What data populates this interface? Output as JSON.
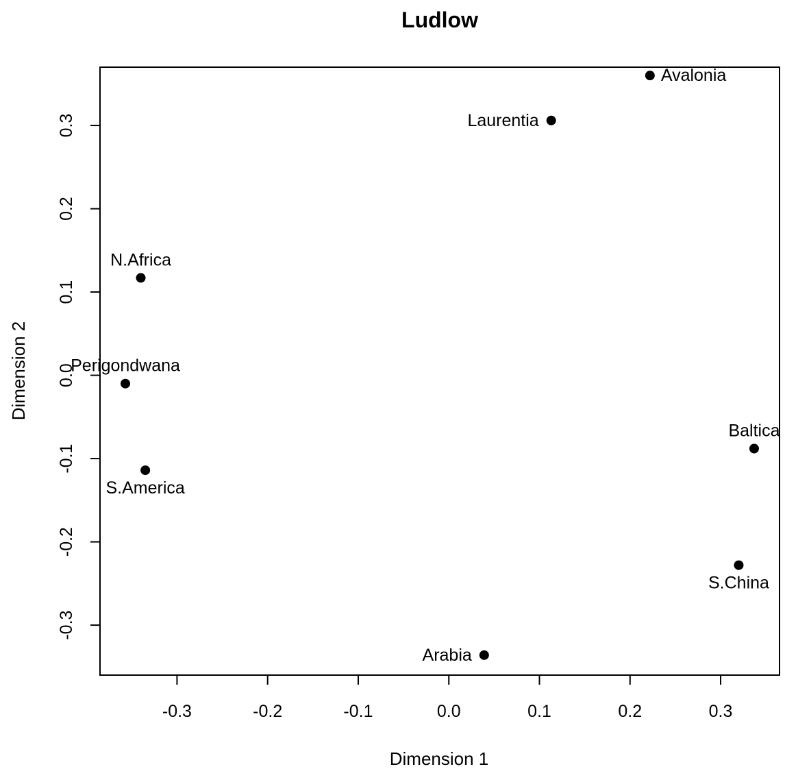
{
  "chart_data": {
    "type": "scatter",
    "title": "Ludlow",
    "xlabel": "Dimension 1",
    "ylabel": "Dimension 2",
    "xlim": [
      -0.385,
      0.365
    ],
    "ylim": [
      -0.36,
      0.37
    ],
    "grid": false,
    "legend": "none",
    "x_ticks": [
      -0.3,
      -0.2,
      -0.1,
      0.0,
      0.1,
      0.2,
      0.3
    ],
    "x_tick_labels": [
      "-0.3",
      "-0.2",
      "-0.1",
      "0.0",
      "0.1",
      "0.2",
      "0.3"
    ],
    "y_ticks": [
      -0.3,
      -0.2,
      -0.1,
      0.0,
      0.1,
      0.2,
      0.3
    ],
    "y_tick_labels": [
      "-0.3",
      "-0.2",
      "-0.1",
      "0.0",
      "0.1",
      "0.2",
      "0.3"
    ],
    "points": [
      {
        "label": "Avalonia",
        "x": 0.222,
        "y": 0.36,
        "label_pos": "right"
      },
      {
        "label": "Laurentia",
        "x": 0.113,
        "y": 0.306,
        "label_pos": "left"
      },
      {
        "label": "N.Africa",
        "x": -0.34,
        "y": 0.117,
        "label_pos": "above"
      },
      {
        "label": "Perigondwana",
        "x": -0.357,
        "y": -0.01,
        "label_pos": "above"
      },
      {
        "label": "S.America",
        "x": -0.335,
        "y": -0.114,
        "label_pos": "below"
      },
      {
        "label": "Baltica",
        "x": 0.337,
        "y": -0.088,
        "label_pos": "above"
      },
      {
        "label": "S.China",
        "x": 0.32,
        "y": -0.228,
        "label_pos": "below"
      },
      {
        "label": "Arabia",
        "x": 0.039,
        "y": -0.336,
        "label_pos": "left"
      }
    ]
  }
}
